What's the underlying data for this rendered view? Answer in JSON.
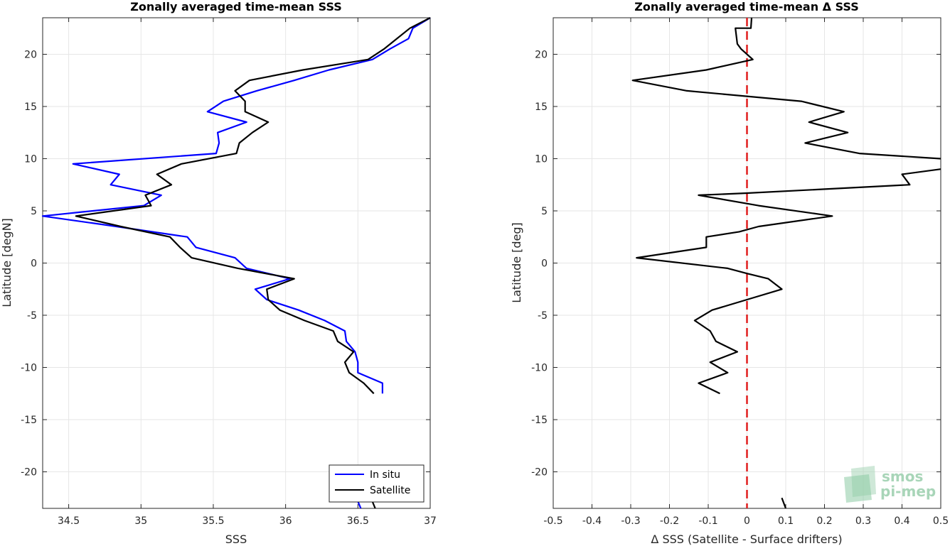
{
  "chart_data": [
    {
      "type": "line",
      "title": "Zonally averaged time-mean SSS",
      "xlabel": "SSS",
      "ylabel": "Latitude [degN]",
      "xlim": [
        34.32,
        37.0
      ],
      "ylim": [
        -23.5,
        23.5
      ],
      "xticks": [
        "34.5",
        "35",
        "35.5",
        "36",
        "36.5",
        "37"
      ],
      "xtick_values": [
        34.5,
        35,
        35.5,
        36,
        36.5,
        37
      ],
      "yticks": [
        "20",
        "15",
        "10",
        "5",
        "0",
        "-5",
        "-10",
        "-15",
        "-20"
      ],
      "ytick_values": [
        20,
        15,
        10,
        5,
        0,
        -5,
        -10,
        -15,
        -20
      ],
      "grid": true,
      "legend": "bottom-right",
      "series": [
        {
          "name": "In situ",
          "color": "#0000ff",
          "segments": [
            [
              [
                37.0,
                23.5
              ],
              [
                36.88,
                22.5
              ],
              [
                36.85,
                21.5
              ],
              [
                36.72,
                20.5
              ],
              [
                36.6,
                19.5
              ],
              [
                36.3,
                18.5
              ],
              [
                36.06,
                17.5
              ],
              [
                35.8,
                16.5
              ],
              [
                35.57,
                15.5
              ],
              [
                35.46,
                14.5
              ],
              [
                35.73,
                13.5
              ],
              [
                35.53,
                12.5
              ],
              [
                35.54,
                11.5
              ],
              [
                35.52,
                10.5
              ],
              [
                34.53,
                9.5
              ],
              [
                34.85,
                8.5
              ],
              [
                34.79,
                7.5
              ],
              [
                35.14,
                6.5
              ],
              [
                35.02,
                5.5
              ],
              [
                34.32,
                4.5
              ],
              [
                34.83,
                3.5
              ],
              [
                35.32,
                2.5
              ],
              [
                35.38,
                1.5
              ],
              [
                35.65,
                0.5
              ],
              [
                35.73,
                -0.5
              ],
              [
                36.03,
                -1.5
              ],
              [
                35.79,
                -2.5
              ],
              [
                35.87,
                -3.5
              ],
              [
                36.09,
                -4.5
              ],
              [
                36.27,
                -5.5
              ],
              [
                36.41,
                -6.5
              ],
              [
                36.42,
                -7.5
              ],
              [
                36.48,
                -8.5
              ],
              [
                36.5,
                -9.5
              ],
              [
                36.5,
                -10.5
              ],
              [
                36.67,
                -11.5
              ],
              [
                36.67,
                -12.5
              ]
            ],
            [
              [
                36.49,
                -22.5
              ],
              [
                36.52,
                -23.5
              ]
            ]
          ]
        },
        {
          "name": "Satellite",
          "color": "#000000",
          "segments": [
            [
              [
                37.0,
                23.5
              ],
              [
                36.86,
                22.5
              ],
              [
                36.77,
                21.5
              ],
              [
                36.68,
                20.5
              ],
              [
                36.57,
                19.5
              ],
              [
                36.12,
                18.5
              ],
              [
                35.75,
                17.5
              ],
              [
                35.65,
                16.5
              ],
              [
                35.72,
                15.5
              ],
              [
                35.72,
                14.5
              ],
              [
                35.88,
                13.5
              ],
              [
                35.77,
                12.5
              ],
              [
                35.68,
                11.5
              ],
              [
                35.66,
                10.5
              ],
              [
                35.28,
                9.5
              ],
              [
                35.11,
                8.5
              ],
              [
                35.21,
                7.5
              ],
              [
                35.03,
                6.5
              ],
              [
                35.07,
                5.5
              ],
              [
                34.55,
                4.5
              ],
              [
                34.86,
                3.5
              ],
              [
                35.2,
                2.5
              ],
              [
                35.27,
                1.5
              ],
              [
                35.35,
                0.5
              ],
              [
                35.67,
                -0.5
              ],
              [
                36.06,
                -1.5
              ],
              [
                35.87,
                -2.5
              ],
              [
                35.88,
                -3.5
              ],
              [
                35.96,
                -4.5
              ],
              [
                36.13,
                -5.5
              ],
              [
                36.33,
                -6.5
              ],
              [
                36.36,
                -7.5
              ],
              [
                36.47,
                -8.5
              ],
              [
                36.41,
                -9.5
              ],
              [
                36.44,
                -10.5
              ],
              [
                36.54,
                -11.5
              ],
              [
                36.61,
                -12.5
              ]
            ],
            [
              [
                36.59,
                -22.5
              ],
              [
                36.62,
                -23.5
              ]
            ]
          ]
        }
      ]
    },
    {
      "type": "line",
      "title": "Zonally averaged time-mean Δ SSS",
      "xlabel": "Δ SSS (Satellite - Surface drifters)",
      "ylabel": "Latitude [deg]",
      "xlim": [
        -0.5,
        0.5
      ],
      "ylim": [
        -23.5,
        23.5
      ],
      "xticks": [
        "-0.5",
        "-0.4",
        "-0.3",
        "-0.2",
        "-0.1",
        "0",
        "0.1",
        "0.2",
        "0.3",
        "0.4",
        "0.5"
      ],
      "xtick_values": [
        -0.5,
        -0.4,
        -0.3,
        -0.2,
        -0.1,
        0,
        0.1,
        0.2,
        0.3,
        0.4,
        0.5
      ],
      "yticks": [
        "20",
        "15",
        "10",
        "5",
        "0",
        "-5",
        "-10",
        "-15",
        "-20"
      ],
      "ytick_values": [
        20,
        15,
        10,
        5,
        0,
        -5,
        -10,
        -15,
        -20
      ],
      "grid": true,
      "zero_line_color": "#e01e1e",
      "series": [
        {
          "color": "#000000",
          "segments": [
            [
              [
                0.012,
                23.5
              ],
              [
                0.01,
                22.5
              ],
              [
                -0.012,
                22.5
              ],
              [
                -0.03,
                22.5
              ],
              [
                -0.025,
                21
              ],
              [
                -0.015,
                20.5
              ],
              [
                0.015,
                19.5
              ],
              [
                -0.105,
                18.5
              ],
              [
                -0.295,
                17.5
              ],
              [
                -0.155,
                16.5
              ],
              [
                0.14,
                15.5
              ],
              [
                0.25,
                14.5
              ],
              [
                0.16,
                13.5
              ],
              [
                0.26,
                12.5
              ],
              [
                0.15,
                11.5
              ],
              [
                0.29,
                10.5
              ],
              [
                0.5,
                10.0
              ]
            ],
            [
              [
                0.5,
                9.0
              ],
              [
                0.4,
                8.5
              ],
              [
                0.42,
                7.5
              ],
              [
                0.0,
                6.7
              ],
              [
                -0.125,
                6.5
              ],
              [
                0.03,
                5.5
              ],
              [
                0.22,
                4.5
              ],
              [
                0.03,
                3.5
              ],
              [
                -0.02,
                3.0
              ],
              [
                -0.105,
                2.5
              ],
              [
                -0.105,
                1.5
              ],
              [
                -0.285,
                0.5
              ],
              [
                -0.05,
                -0.5
              ],
              [
                0.0,
                -1.0
              ],
              [
                0.055,
                -1.5
              ],
              [
                0.09,
                -2.5
              ],
              [
                0.0,
                -3.5
              ],
              [
                -0.09,
                -4.5
              ],
              [
                -0.135,
                -5.5
              ],
              [
                -0.095,
                -6.5
              ],
              [
                -0.08,
                -7.5
              ],
              [
                -0.025,
                -8.5
              ],
              [
                -0.095,
                -9.5
              ],
              [
                -0.05,
                -10.5
              ],
              [
                -0.125,
                -11.5
              ],
              [
                -0.07,
                -12.5
              ]
            ],
            [
              [
                0.09,
                -22.5
              ],
              [
                0.1,
                -23.5
              ]
            ]
          ]
        }
      ]
    }
  ],
  "legend": {
    "insitu_label": "In situ",
    "satellite_label": "Satellite"
  },
  "logo": {
    "line1": "smos",
    "line2": "pi-mep"
  }
}
